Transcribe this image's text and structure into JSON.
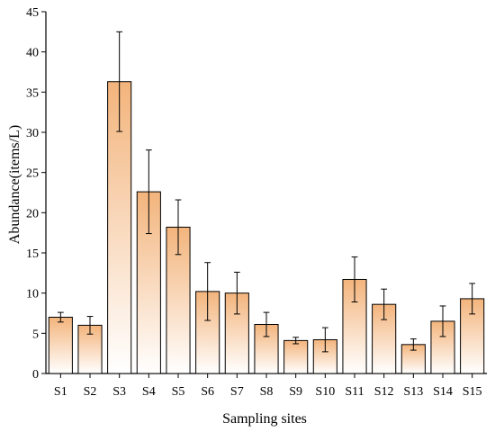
{
  "chart_data": {
    "type": "bar",
    "title": "",
    "xlabel": "Sampling sites",
    "ylabel": "Abundance(items/L)",
    "ylim": [
      0,
      45
    ],
    "yticks": [
      0,
      5,
      10,
      15,
      20,
      25,
      30,
      35,
      40,
      45
    ],
    "categories": [
      "S1",
      "S2",
      "S3",
      "S4",
      "S5",
      "S6",
      "S7",
      "S8",
      "S9",
      "S10",
      "S11",
      "S12",
      "S13",
      "S14",
      "S15"
    ],
    "values": [
      7.0,
      6.0,
      36.3,
      22.6,
      18.2,
      10.2,
      10.0,
      6.1,
      4.1,
      4.2,
      11.7,
      8.6,
      3.6,
      6.5,
      9.3
    ],
    "errors": [
      0.6,
      1.1,
      6.2,
      5.2,
      3.4,
      3.6,
      2.6,
      1.5,
      0.4,
      1.5,
      2.8,
      1.9,
      0.7,
      1.9,
      1.9
    ],
    "grid": false,
    "bar_color_top": "#f3b47c",
    "bar_color_bottom": "#ffffff"
  }
}
